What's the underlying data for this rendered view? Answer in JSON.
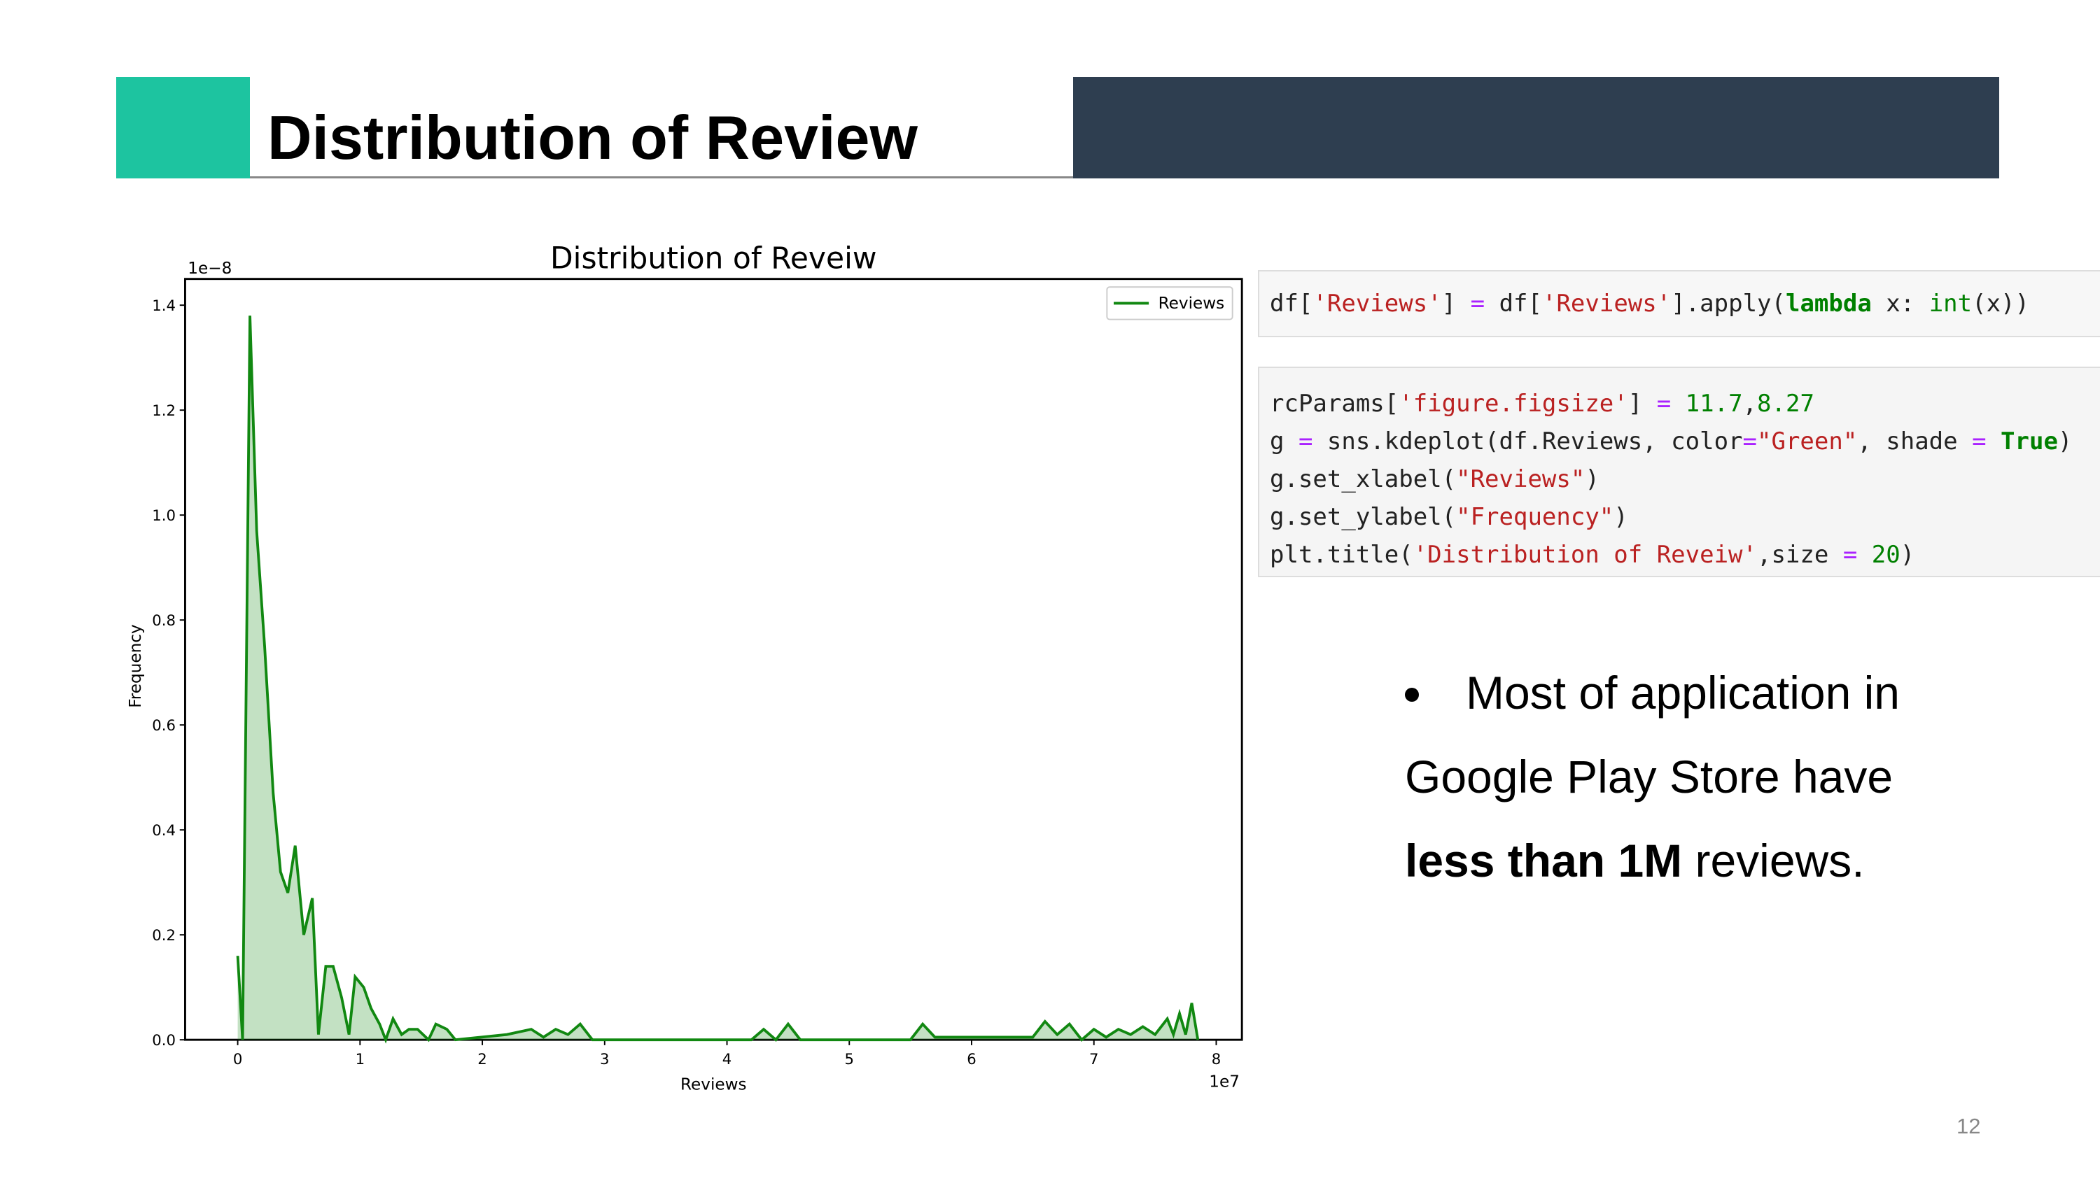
{
  "header": {
    "title": "Distribution of Review"
  },
  "chart_data": {
    "type": "line",
    "title": "Distribution of Reveiw",
    "x_label": "Reviews",
    "y_label": "Frequency",
    "x_offset_label": "1e7",
    "y_offset_label": "1e−8",
    "xlim": [
      -0.43,
      8.21
    ],
    "ylim": [
      0,
      1.45
    ],
    "xticks": [
      0,
      1,
      2,
      3,
      4,
      5,
      6,
      7,
      8
    ],
    "yticks": [
      {
        "value": 0,
        "label": "0.0"
      },
      0.2,
      0.4,
      0.6,
      0.8,
      {
        "value": 1,
        "label": "1.0"
      },
      1.2,
      1.4
    ],
    "legend": "upper right",
    "series": [
      {
        "name": "Reviews",
        "color": "#118811",
        "shade": true,
        "x": [
          0,
          0.04,
          0.1,
          0.155,
          0.22,
          0.29,
          0.35,
          0.41,
          0.47,
          0.54,
          0.61,
          0.66,
          0.72,
          0.78,
          0.85,
          0.91,
          0.96,
          1.03,
          1.09,
          1.16,
          1.21,
          1.27,
          1.34,
          1.4,
          1.47,
          1.56,
          1.62,
          1.71,
          1.78,
          2.2,
          2.4,
          2.5,
          2.6,
          2.7,
          2.8,
          2.9,
          4.2,
          4.3,
          4.4,
          4.5,
          4.6,
          5.5,
          5.6,
          5.7,
          6.5,
          6.6,
          6.7,
          6.8,
          6.9,
          7.0,
          7.1,
          7.2,
          7.3,
          7.4,
          7.5,
          7.6,
          7.65,
          7.7,
          7.75,
          7.8,
          7.85
        ],
        "values": [
          0.16,
          0,
          1.38,
          0.97,
          0.75,
          0.47,
          0.32,
          0.28,
          0.37,
          0.2,
          0.27,
          0.01,
          0.14,
          0.14,
          0.08,
          0.01,
          0.12,
          0.1,
          0.06,
          0.03,
          0,
          0.04,
          0.01,
          0.02,
          0.02,
          0,
          0.03,
          0.02,
          0,
          0.01,
          0.02,
          0.005,
          0.02,
          0.01,
          0.03,
          0,
          0,
          0.02,
          0,
          0.03,
          0,
          0,
          0.03,
          0.005,
          0.005,
          0.035,
          0.01,
          0.03,
          0,
          0.02,
          0.005,
          0.02,
          0.01,
          0.025,
          0.01,
          0.04,
          0.01,
          0.05,
          0.01,
          0.07,
          0
        ]
      }
    ]
  },
  "code_blocks": [
    [
      [
        {
          "text": "df[",
          "color": "#222222"
        },
        {
          "text": "'Reviews'",
          "color": "#ba2121"
        },
        {
          "text": "] ",
          "color": "#222222"
        },
        {
          "text": "=",
          "color": "#aa22ff"
        },
        {
          "text": " df[",
          "color": "#222222"
        },
        {
          "text": "'Reviews'",
          "color": "#ba2121"
        },
        {
          "text": "].apply(",
          "color": "#222222"
        },
        {
          "text": "lambda",
          "color": "#008000",
          "bold": true
        },
        {
          "text": " x: ",
          "color": "#222222"
        },
        {
          "text": "int",
          "color": "#008000"
        },
        {
          "text": "(x))",
          "color": "#222222"
        }
      ]
    ],
    [
      [
        {
          "text": "rcParams[",
          "color": "#222222"
        },
        {
          "text": "'figure.figsize'",
          "color": "#ba2121"
        },
        {
          "text": "] ",
          "color": "#222222"
        },
        {
          "text": "=",
          "color": "#aa22ff"
        },
        {
          "text": " 11.7",
          "color": "#008000"
        },
        {
          "text": ",",
          "color": "#222222"
        },
        {
          "text": "8.27",
          "color": "#008000"
        }
      ],
      [
        {
          "text": "g ",
          "color": "#222222"
        },
        {
          "text": "=",
          "color": "#aa22ff"
        },
        {
          "text": " sns.kdeplot(df.Reviews, color",
          "color": "#222222"
        },
        {
          "text": "=",
          "color": "#aa22ff"
        },
        {
          "text": "\"Green\"",
          "color": "#ba2121"
        },
        {
          "text": ", shade ",
          "color": "#222222"
        },
        {
          "text": "=",
          "color": "#aa22ff"
        },
        {
          "text": " True",
          "color": "#008000",
          "bold": true
        },
        {
          "text": ")",
          "color": "#222222"
        }
      ],
      [
        {
          "text": "g.set_xlabel(",
          "color": "#222222"
        },
        {
          "text": "\"Reviews\"",
          "color": "#ba2121"
        },
        {
          "text": ")",
          "color": "#222222"
        }
      ],
      [
        {
          "text": "g.set_ylabel(",
          "color": "#222222"
        },
        {
          "text": "\"Frequency\"",
          "color": "#ba2121"
        },
        {
          "text": ")",
          "color": "#222222"
        }
      ],
      [
        {
          "text": "plt.title(",
          "color": "#222222"
        },
        {
          "text": "'Distribution of Reveiw'",
          "color": "#ba2121"
        },
        {
          "text": ",size ",
          "color": "#222222"
        },
        {
          "text": "=",
          "color": "#aa22ff"
        },
        {
          "text": " 20",
          "color": "#008000"
        },
        {
          "text": ")",
          "color": "#222222"
        }
      ]
    ]
  ],
  "bullet": {
    "text": "Most of application in Google Play Store have",
    "bold": "less than 1M",
    "after": "reviews."
  },
  "page_number": "12"
}
